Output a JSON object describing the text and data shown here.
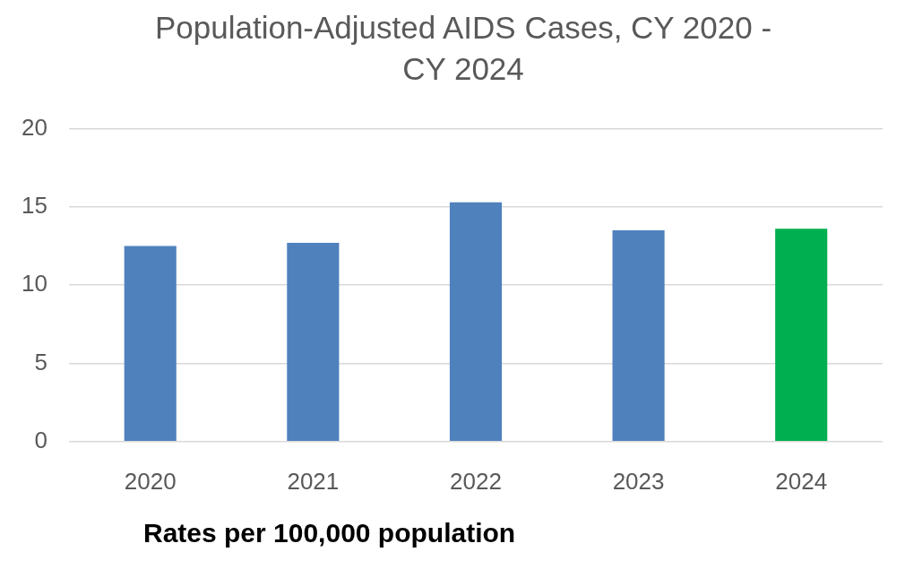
{
  "chart_data": {
    "type": "bar",
    "title": "Population-Adjusted AIDS Cases, CY 2020 - CY 2024",
    "xlabel": "Rates per 100,000 population",
    "categories": [
      "2020",
      "2021",
      "2022",
      "2023",
      "2024"
    ],
    "values": [
      12.5,
      12.7,
      15.3,
      13.5,
      13.6
    ],
    "colors": [
      "#4f81bd",
      "#4f81bd",
      "#4f81bd",
      "#4f81bd",
      "#00b050"
    ],
    "ylim": [
      0,
      20
    ],
    "yticks": [
      0,
      5,
      10,
      15,
      20
    ],
    "grid": "y"
  }
}
